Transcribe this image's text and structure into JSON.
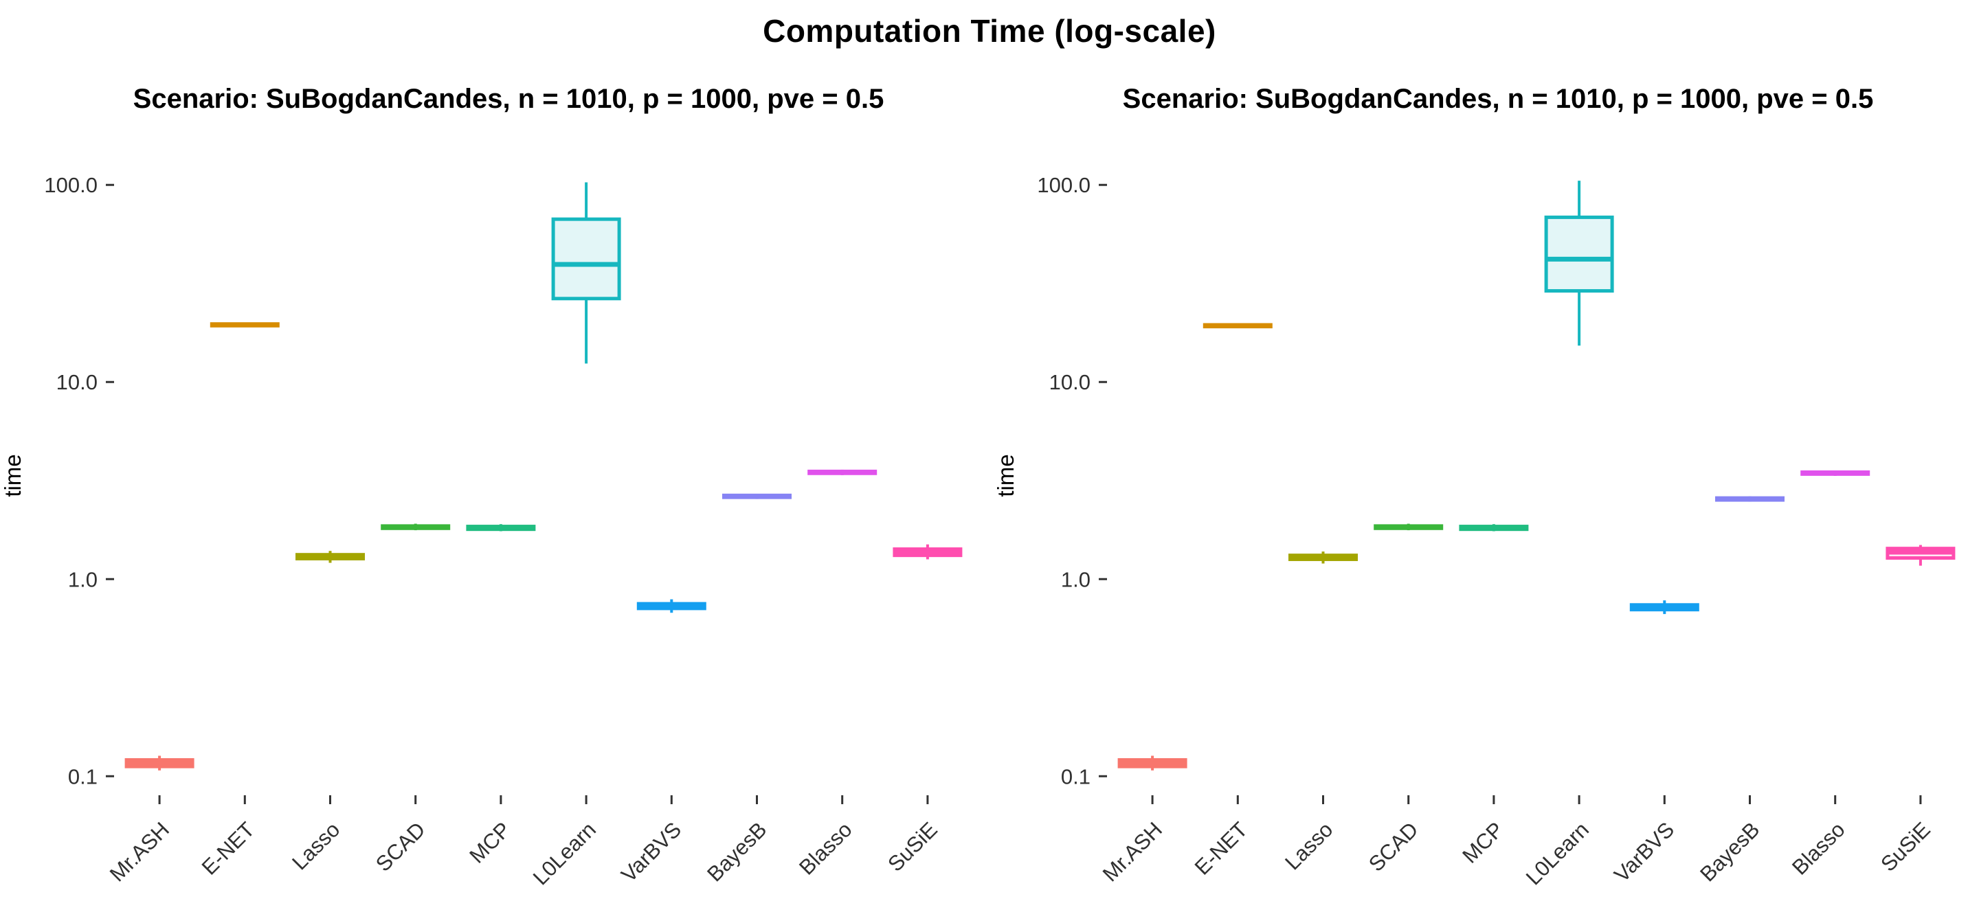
{
  "header": {
    "title": "Computation Time (log-scale)"
  },
  "chart_data": {
    "type": "boxplot",
    "title": "Computation Time (log-scale)",
    "orientation": "vertical",
    "grid": false,
    "legend": "none",
    "y_axis": {
      "label": "time",
      "scale": "log10",
      "tick_labels": [
        "100.0",
        "10.0",
        "1.0",
        "0.1"
      ],
      "tick_values": [
        100,
        10,
        1,
        0.1
      ],
      "ylim": [
        0.082,
        137
      ]
    },
    "categories": [
      "Mr.ASH",
      "E-NET",
      "Lasso",
      "SCAD",
      "MCP",
      "L0Learn",
      "VarBVS",
      "BayesB",
      "Blasso",
      "SuSiE"
    ],
    "panels": [
      {
        "subtitle": "Scenario: SuBogdanCandes, n = 1010, p = 1000, pve = 0.5",
        "boxes": [
          {
            "method": "Mr.ASH",
            "color": "#F8766D",
            "lo": 0.107,
            "q1": 0.112,
            "med": 0.116,
            "q3": 0.121,
            "hi": 0.127
          },
          {
            "method": "E-NET",
            "color": "#D78C00",
            "lo": 19.0,
            "q1": 19.3,
            "med": 19.5,
            "q3": 19.7,
            "hi": 19.9
          },
          {
            "method": "Lasso",
            "color": "#A3A500",
            "lo": 1.21,
            "q1": 1.27,
            "med": 1.3,
            "q3": 1.33,
            "hi": 1.39
          },
          {
            "method": "SCAD",
            "color": "#3AB63A",
            "lo": 1.77,
            "q1": 1.81,
            "med": 1.83,
            "q3": 1.86,
            "hi": 1.91
          },
          {
            "method": "MCP",
            "color": "#20BD81",
            "lo": 1.75,
            "q1": 1.79,
            "med": 1.82,
            "q3": 1.85,
            "hi": 1.9
          },
          {
            "method": "L0Learn",
            "color": "#16B7BF",
            "lo": 12.4,
            "q1": 26.5,
            "med": 39.5,
            "q3": 67.0,
            "hi": 103.0
          },
          {
            "method": "VarBVS",
            "color": "#149FF0",
            "lo": 0.675,
            "q1": 0.71,
            "med": 0.73,
            "q3": 0.75,
            "hi": 0.79
          },
          {
            "method": "BayesB",
            "color": "#8683F4",
            "lo": 2.55,
            "q1": 2.6,
            "med": 2.63,
            "q3": 2.66,
            "hi": 2.71
          },
          {
            "method": "Blasso",
            "color": "#E052EC",
            "lo": 3.37,
            "q1": 3.44,
            "med": 3.48,
            "q3": 3.52,
            "hi": 3.59
          },
          {
            "method": "SuSiE",
            "color": "#FF4DAF",
            "lo": 1.26,
            "q1": 1.32,
            "med": 1.36,
            "q3": 1.42,
            "hi": 1.5
          }
        ]
      },
      {
        "subtitle": "Scenario: SuBogdanCandes, n = 1010, p = 1000, pve = 0.5",
        "boxes": [
          {
            "method": "Mr.ASH",
            "color": "#F8766D",
            "lo": 0.107,
            "q1": 0.112,
            "med": 0.116,
            "q3": 0.121,
            "hi": 0.127
          },
          {
            "method": "E-NET",
            "color": "#D78C00",
            "lo": 18.9,
            "q1": 19.1,
            "med": 19.3,
            "q3": 19.5,
            "hi": 19.7
          },
          {
            "method": "Lasso",
            "color": "#A3A500",
            "lo": 1.2,
            "q1": 1.26,
            "med": 1.29,
            "q3": 1.32,
            "hi": 1.38
          },
          {
            "method": "SCAD",
            "color": "#3AB63A",
            "lo": 1.77,
            "q1": 1.81,
            "med": 1.83,
            "q3": 1.86,
            "hi": 1.91
          },
          {
            "method": "MCP",
            "color": "#20BD81",
            "lo": 1.75,
            "q1": 1.79,
            "med": 1.82,
            "q3": 1.85,
            "hi": 1.9
          },
          {
            "method": "L0Learn",
            "color": "#16B7BF",
            "lo": 15.3,
            "q1": 29.0,
            "med": 42.0,
            "q3": 68.5,
            "hi": 105.0
          },
          {
            "method": "VarBVS",
            "color": "#149FF0",
            "lo": 0.665,
            "q1": 0.7,
            "med": 0.72,
            "q3": 0.74,
            "hi": 0.78
          },
          {
            "method": "BayesB",
            "color": "#8683F4",
            "lo": 2.47,
            "q1": 2.52,
            "med": 2.55,
            "q3": 2.58,
            "hi": 2.63
          },
          {
            "method": "Blasso",
            "color": "#E052EC",
            "lo": 3.34,
            "q1": 3.41,
            "med": 3.45,
            "q3": 3.49,
            "hi": 3.56
          },
          {
            "method": "SuSiE",
            "color": "#FF4DAF",
            "lo": 1.17,
            "q1": 1.28,
            "med": 1.37,
            "q3": 1.43,
            "hi": 1.49
          }
        ]
      }
    ]
  }
}
